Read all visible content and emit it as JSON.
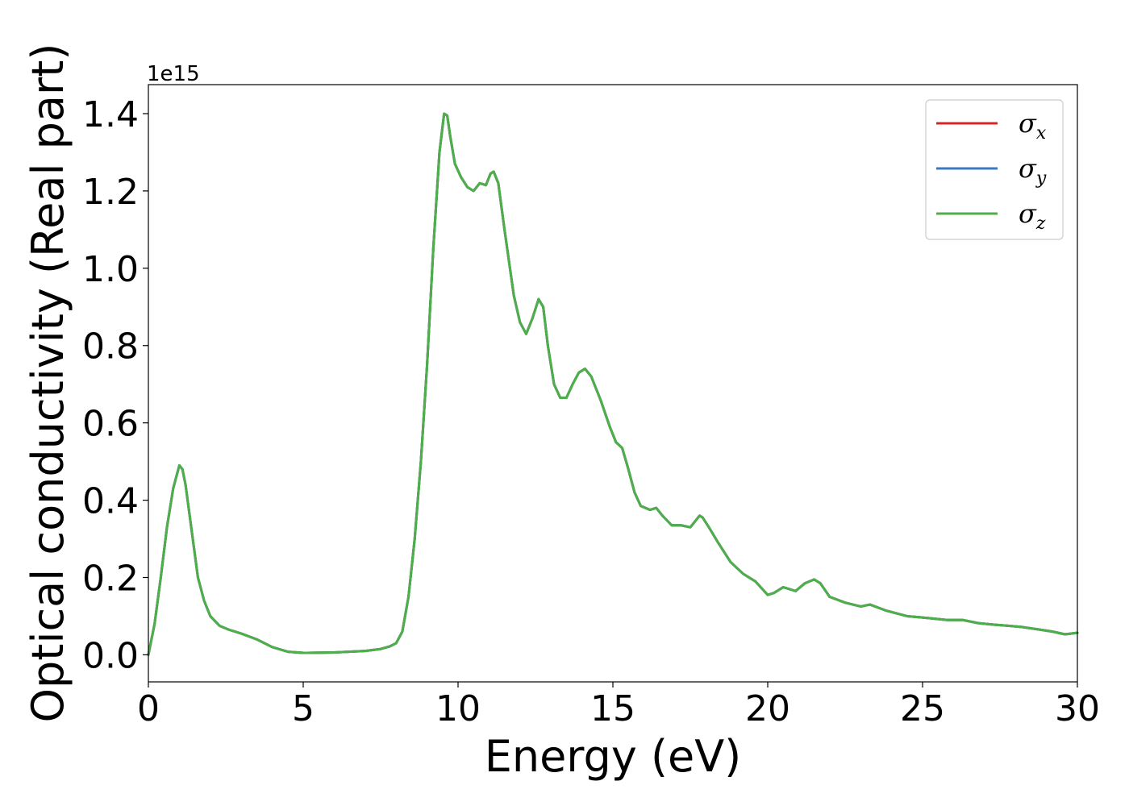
{
  "chart_data": {
    "type": "line",
    "xlabel": "Energy (eV)",
    "ylabel": "Optical conductivity (Real part)",
    "y_offset_label": "1e15",
    "xlim": [
      0,
      30
    ],
    "ylim": [
      -0.07,
      1.475
    ],
    "x_scale": "linear",
    "y_scale": "linear",
    "y_multiplier": 1000000000000000.0,
    "grid": false,
    "legend_position": "top-right",
    "x_ticks": [
      0,
      5,
      10,
      15,
      20,
      25,
      30
    ],
    "x_tick_labels": [
      "0",
      "5",
      "10",
      "15",
      "20",
      "25",
      "30"
    ],
    "y_ticks": [
      0.0,
      0.2,
      0.4,
      0.6,
      0.8,
      1.0,
      1.2,
      1.4
    ],
    "y_tick_labels": [
      "0.0",
      "0.2",
      "0.4",
      "0.6",
      "0.8",
      "1.0",
      "1.2",
      "1.4"
    ],
    "series": [
      {
        "name": "σ",
        "subscript": "x",
        "color": "#d62728",
        "ref": "shared"
      },
      {
        "name": "σ",
        "subscript": "y",
        "color": "#3a7bbf",
        "ref": "shared"
      },
      {
        "name": "σ",
        "subscript": "z",
        "color": "#4daf4a",
        "ref": "shared"
      }
    ],
    "shared_curve": {
      "x": [
        0,
        0.2,
        0.4,
        0.6,
        0.8,
        1.0,
        1.1,
        1.2,
        1.4,
        1.6,
        1.8,
        2.0,
        2.3,
        2.6,
        3.0,
        3.5,
        4.0,
        4.5,
        5.0,
        6.0,
        7.0,
        7.5,
        7.8,
        8.0,
        8.2,
        8.4,
        8.6,
        8.8,
        9.0,
        9.2,
        9.4,
        9.55,
        9.65,
        9.75,
        9.9,
        10.1,
        10.3,
        10.5,
        10.7,
        10.9,
        11.05,
        11.15,
        11.3,
        11.5,
        11.8,
        12.0,
        12.2,
        12.4,
        12.6,
        12.75,
        12.9,
        13.1,
        13.3,
        13.5,
        13.7,
        13.9,
        14.1,
        14.3,
        14.6,
        14.9,
        15.1,
        15.3,
        15.5,
        15.7,
        15.9,
        16.2,
        16.4,
        16.6,
        16.9,
        17.2,
        17.5,
        17.8,
        17.9,
        18.1,
        18.4,
        18.8,
        19.2,
        19.6,
        20.0,
        20.2,
        20.5,
        20.9,
        21.2,
        21.5,
        21.7,
        22.0,
        22.5,
        23.0,
        23.3,
        23.8,
        24.5,
        25.2,
        25.8,
        26.3,
        26.8,
        27.3,
        27.8,
        28.2,
        28.8,
        29.2,
        29.6,
        30.0
      ],
      "y": [
        0.0,
        0.08,
        0.2,
        0.33,
        0.43,
        0.49,
        0.48,
        0.44,
        0.32,
        0.2,
        0.14,
        0.1,
        0.075,
        0.065,
        0.055,
        0.04,
        0.02,
        0.008,
        0.005,
        0.006,
        0.01,
        0.015,
        0.022,
        0.03,
        0.06,
        0.15,
        0.3,
        0.5,
        0.75,
        1.05,
        1.3,
        1.4,
        1.395,
        1.34,
        1.27,
        1.235,
        1.21,
        1.2,
        1.22,
        1.215,
        1.245,
        1.25,
        1.22,
        1.1,
        0.93,
        0.86,
        0.83,
        0.87,
        0.92,
        0.9,
        0.8,
        0.7,
        0.665,
        0.665,
        0.7,
        0.73,
        0.74,
        0.72,
        0.66,
        0.59,
        0.55,
        0.535,
        0.48,
        0.42,
        0.385,
        0.375,
        0.38,
        0.36,
        0.335,
        0.335,
        0.33,
        0.36,
        0.355,
        0.33,
        0.29,
        0.24,
        0.21,
        0.19,
        0.155,
        0.16,
        0.175,
        0.165,
        0.185,
        0.195,
        0.185,
        0.15,
        0.135,
        0.125,
        0.13,
        0.115,
        0.1,
        0.095,
        0.09,
        0.09,
        0.082,
        0.078,
        0.075,
        0.072,
        0.065,
        0.06,
        0.053,
        0.057
      ]
    }
  }
}
